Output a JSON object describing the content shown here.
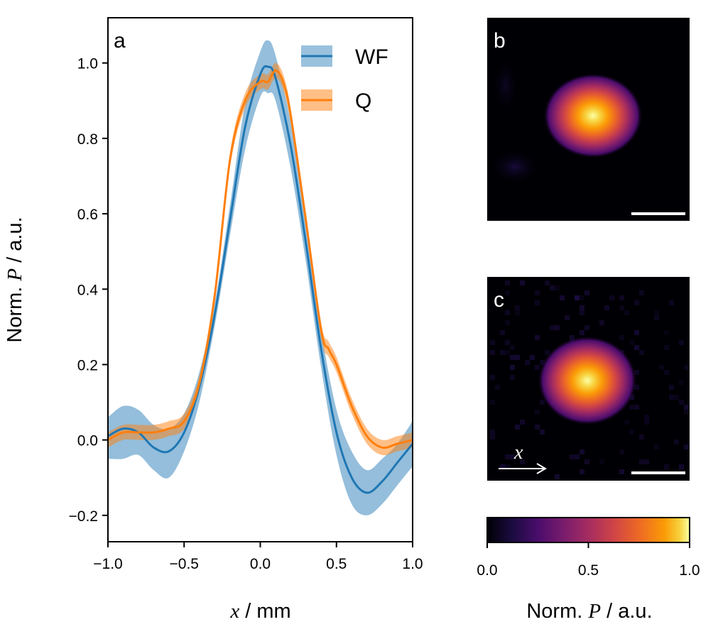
{
  "chart_data": [
    {
      "type": "line",
      "panel": "a",
      "xlabel_var": "x",
      "xlabel_unit": " / mm",
      "ylabel_prefix": "Norm. ",
      "ylabel_var": "P",
      "ylabel_unit": " / a.u.",
      "xlim": [
        -1.0,
        1.0
      ],
      "ylim": [
        -0.27,
        1.12
      ],
      "xticks": [
        -1.0,
        -0.5,
        0.0,
        0.5,
        1.0
      ],
      "xtick_labels": [
        "−1.0",
        "−0.5",
        "0.0",
        "0.5",
        "1.0"
      ],
      "yticks": [
        -0.2,
        0.0,
        0.2,
        0.4,
        0.6,
        0.8,
        1.0
      ],
      "ytick_labels": [
        "−0.2",
        "0.0",
        "0.2",
        "0.4",
        "0.6",
        "0.8",
        "1.0"
      ],
      "legend_position": "top-right",
      "series": [
        {
          "name": "WF",
          "color": "#1f77b4",
          "band_color": "#1f77b4",
          "x": [
            -1.0,
            -0.9,
            -0.8,
            -0.7,
            -0.6,
            -0.5,
            -0.4,
            -0.3,
            -0.2,
            -0.1,
            0.0,
            0.05,
            0.1,
            0.2,
            0.3,
            0.4,
            0.5,
            0.6,
            0.7,
            0.8,
            0.9,
            1.0
          ],
          "y": [
            0.01,
            0.03,
            0.02,
            -0.02,
            -0.03,
            0.02,
            0.14,
            0.33,
            0.58,
            0.83,
            0.97,
            0.99,
            0.96,
            0.78,
            0.52,
            0.24,
            0.02,
            -0.1,
            -0.14,
            -0.11,
            -0.06,
            -0.01
          ],
          "y_lower": [
            -0.05,
            -0.05,
            -0.04,
            -0.08,
            -0.1,
            -0.03,
            0.1,
            0.3,
            0.54,
            0.77,
            0.91,
            0.92,
            0.9,
            0.72,
            0.47,
            0.19,
            -0.04,
            -0.17,
            -0.2,
            -0.17,
            -0.12,
            -0.07
          ],
          "y_upper": [
            0.06,
            0.09,
            0.08,
            0.04,
            0.03,
            0.07,
            0.18,
            0.36,
            0.62,
            0.89,
            1.03,
            1.06,
            1.02,
            0.84,
            0.57,
            0.29,
            0.08,
            -0.03,
            -0.08,
            -0.05,
            -0.01,
            0.05
          ]
        },
        {
          "name": "Q",
          "color": "#ff7f0e",
          "band_color": "#ff7f0e",
          "x": [
            -1.0,
            -0.9,
            -0.8,
            -0.7,
            -0.6,
            -0.5,
            -0.4,
            -0.3,
            -0.2,
            -0.1,
            0.0,
            0.05,
            0.1,
            0.15,
            0.2,
            0.3,
            0.4,
            0.45,
            0.5,
            0.6,
            0.7,
            0.8,
            0.9,
            1.0
          ],
          "y": [
            0.0,
            0.02,
            0.02,
            0.02,
            0.03,
            0.05,
            0.15,
            0.38,
            0.74,
            0.9,
            0.95,
            0.95,
            0.98,
            0.95,
            0.86,
            0.58,
            0.29,
            0.24,
            0.2,
            0.09,
            0.01,
            -0.02,
            -0.01,
            0.0
          ],
          "y_lower": [
            -0.02,
            0.0,
            0.0,
            0.0,
            0.01,
            0.03,
            0.13,
            0.36,
            0.72,
            0.88,
            0.93,
            0.93,
            0.96,
            0.93,
            0.84,
            0.56,
            0.27,
            0.22,
            0.18,
            0.07,
            -0.01,
            -0.04,
            -0.03,
            -0.02
          ],
          "y_upper": [
            0.02,
            0.04,
            0.04,
            0.04,
            0.05,
            0.07,
            0.17,
            0.4,
            0.76,
            0.92,
            0.97,
            0.97,
            1.0,
            0.97,
            0.88,
            0.6,
            0.31,
            0.26,
            0.22,
            0.11,
            0.03,
            0.0,
            0.01,
            0.02
          ]
        }
      ]
    },
    {
      "type": "heatmap",
      "panel": "b",
      "peak": [
        0.42,
        0.36
      ],
      "sigma": [
        0.24,
        0.18
      ],
      "scale_bar": true
    },
    {
      "type": "heatmap",
      "panel": "c",
      "peak": [
        0.46,
        0.4
      ],
      "sigma": [
        0.25,
        0.21
      ],
      "scale_bar": true,
      "arrow_label": "x"
    }
  ],
  "colorbar": {
    "ticks": [
      0.0,
      0.5,
      1.0
    ],
    "tick_labels": [
      "0.0",
      "0.5",
      "1.0"
    ],
    "label_prefix": "Norm. ",
    "label_var": "P",
    "label_unit": " / a.u."
  },
  "panel_labels": {
    "a": "a",
    "b": "b",
    "c": "c"
  }
}
